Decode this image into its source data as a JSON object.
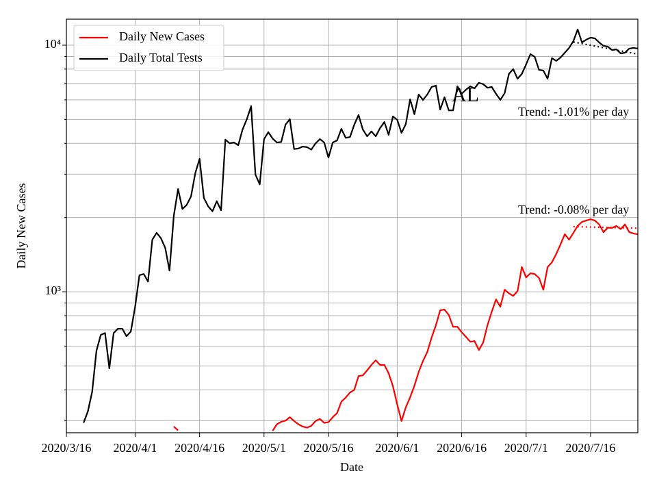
{
  "chart_data": {
    "type": "line",
    "log_y": true,
    "grid": true,
    "legend_position": "upper-left",
    "xlabel": "Date",
    "ylabel": "Daily New Cases",
    "annotations": [
      "AL",
      "Trend: -1.01% per day",
      "Trend: -0.08% per day"
    ],
    "xlim": [
      "2020/3/16",
      "2020/7/27"
    ],
    "xticks": [
      "2020/3/16",
      "2020/4/1",
      "2020/4/16",
      "2020/5/1",
      "2020/5/16",
      "2020/6/1",
      "2020/6/16",
      "2020/7/1",
      "2020/7/16"
    ],
    "ylim": [
      268,
      12750
    ],
    "yticks": [
      {
        "value": 1000,
        "label": "10³"
      },
      {
        "value": 10000,
        "label": "10⁴"
      }
    ],
    "minor_yticks": [
      300,
      400,
      500,
      600,
      700,
      800,
      900,
      2000,
      3000,
      4000,
      5000,
      6000,
      7000,
      8000,
      9000
    ],
    "x": [
      "2020/3/20",
      "2020/3/21",
      "2020/3/22",
      "2020/3/23",
      "2020/3/24",
      "2020/3/25",
      "2020/3/26",
      "2020/3/27",
      "2020/3/28",
      "2020/3/29",
      "2020/3/30",
      "2020/3/31",
      "2020/4/1",
      "2020/4/2",
      "2020/4/3",
      "2020/4/4",
      "2020/4/5",
      "2020/4/6",
      "2020/4/7",
      "2020/4/8",
      "2020/4/9",
      "2020/4/10",
      "2020/4/11",
      "2020/4/12",
      "2020/4/13",
      "2020/4/14",
      "2020/4/15",
      "2020/4/16",
      "2020/4/17",
      "2020/4/18",
      "2020/4/19",
      "2020/4/20",
      "2020/4/21",
      "2020/4/22",
      "2020/4/23",
      "2020/4/24",
      "2020/4/25",
      "2020/4/26",
      "2020/4/27",
      "2020/4/28",
      "2020/4/29",
      "2020/4/30",
      "2020/5/1",
      "2020/5/2",
      "2020/5/3",
      "2020/5/4",
      "2020/5/5",
      "2020/5/6",
      "2020/5/7",
      "2020/5/8",
      "2020/5/9",
      "2020/5/10",
      "2020/5/11",
      "2020/5/12",
      "2020/5/13",
      "2020/5/14",
      "2020/5/15",
      "2020/5/16",
      "2020/5/17",
      "2020/5/18",
      "2020/5/19",
      "2020/5/20",
      "2020/5/21",
      "2020/5/22",
      "2020/5/23",
      "2020/5/24",
      "2020/5/25",
      "2020/5/26",
      "2020/5/27",
      "2020/5/28",
      "2020/5/29",
      "2020/5/30",
      "2020/5/31",
      "2020/6/1",
      "2020/6/2",
      "2020/6/3",
      "2020/6/4",
      "2020/6/5",
      "2020/6/6",
      "2020/6/7",
      "2020/6/8",
      "2020/6/9",
      "2020/6/10",
      "2020/6/11",
      "2020/6/12",
      "2020/6/13",
      "2020/6/14",
      "2020/6/15",
      "2020/6/16",
      "2020/6/17",
      "2020/6/18",
      "2020/6/19",
      "2020/6/20",
      "2020/6/21",
      "2020/6/22",
      "2020/6/23",
      "2020/6/24",
      "2020/6/25",
      "2020/6/26",
      "2020/6/27",
      "2020/6/28",
      "2020/6/29",
      "2020/6/30",
      "2020/7/1",
      "2020/7/2",
      "2020/7/3",
      "2020/7/4",
      "2020/7/5",
      "2020/7/6",
      "2020/7/7",
      "2020/7/8",
      "2020/7/9",
      "2020/7/10",
      "2020/7/11",
      "2020/7/12",
      "2020/7/13",
      "2020/7/14",
      "2020/7/15",
      "2020/7/16",
      "2020/7/17",
      "2020/7/18",
      "2020/7/19",
      "2020/7/20",
      "2020/7/21",
      "2020/7/22",
      "2020/7/23",
      "2020/7/24",
      "2020/7/25",
      "2020/7/26",
      "2020/7/27"
    ],
    "series": [
      {
        "name": "Daily New Cases",
        "color": "#ff0000",
        "values": [
          null,
          null,
          null,
          null,
          null,
          null,
          null,
          null,
          null,
          null,
          null,
          null,
          null,
          null,
          null,
          null,
          null,
          null,
          null,
          null,
          null,
          284,
          274,
          null,
          null,
          null,
          null,
          null,
          null,
          null,
          null,
          null,
          null,
          null,
          null,
          null,
          null,
          null,
          null,
          null,
          null,
          null,
          null,
          null,
          273,
          290,
          297,
          300,
          310,
          299,
          290,
          284,
          281,
          286,
          299,
          305,
          294,
          296,
          310,
          322,
          358,
          372,
          390,
          400,
          455,
          458,
          480,
          505,
          527,
          505,
          505,
          467,
          414,
          349,
          299,
          340,
          373,
          416,
          473,
          524,
          570,
          652,
          731,
          841,
          847,
          805,
          721,
          721,
          685,
          656,
          627,
          631,
          580,
          622,
          731,
          830,
          931,
          869,
          1019,
          985,
          962,
          1006,
          1260,
          1143,
          1188,
          1180,
          1137,
          1019,
          1259,
          1316,
          1422,
          1556,
          1711,
          1626,
          1733,
          1849,
          1920,
          1945,
          1968,
          1945,
          1875,
          1746,
          1816,
          1816,
          1849,
          1795,
          1875,
          1746,
          1722,
          1711
        ]
      },
      {
        "name": "Daily Total Tests",
        "color": "#000000",
        "values": [
          294,
          327,
          393,
          577,
          668,
          680,
          489,
          680,
          708,
          708,
          660,
          690,
          869,
          1167,
          1180,
          1100,
          1626,
          1733,
          1650,
          1507,
          1219,
          2033,
          2610,
          2167,
          2250,
          2433,
          3026,
          3460,
          2400,
          2220,
          2120,
          2330,
          2140,
          4140,
          4000,
          4030,
          3930,
          4550,
          5010,
          5660,
          2985,
          2727,
          4160,
          4440,
          4180,
          4030,
          4050,
          4760,
          5010,
          3790,
          3810,
          3880,
          3860,
          3770,
          4000,
          4160,
          4030,
          3500,
          4030,
          4110,
          4580,
          4210,
          4240,
          4760,
          5210,
          4550,
          4270,
          4470,
          4270,
          4610,
          4880,
          4330,
          5140,
          4980,
          4410,
          4790,
          6030,
          5250,
          6310,
          6000,
          6310,
          6770,
          6860,
          5480,
          6150,
          5440,
          5440,
          6810,
          6350,
          6600,
          6810,
          6680,
          7040,
          6950,
          6720,
          6770,
          6350,
          6000,
          6390,
          7650,
          8000,
          7310,
          7650,
          8360,
          9200,
          8970,
          7940,
          7890,
          7310,
          8860,
          8640,
          8910,
          9320,
          9750,
          10390,
          11580,
          10260,
          10530,
          10730,
          10660,
          10260,
          9940,
          9870,
          9560,
          9620,
          9260,
          9320,
          9690,
          9750,
          9690
        ]
      }
    ],
    "trends": [
      {
        "color": "#000000",
        "x": [
          "2020/7/12",
          "2020/7/27"
        ],
        "values": [
          10300,
          9200
        ]
      },
      {
        "color": "#ff0000",
        "x": [
          "2020/7/12",
          "2020/7/27"
        ],
        "values": [
          1837,
          1810
        ]
      }
    ]
  }
}
